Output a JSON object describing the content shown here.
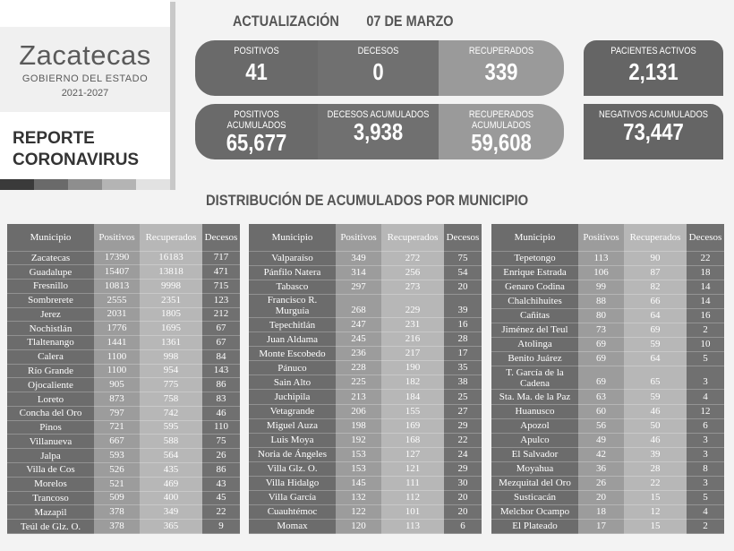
{
  "header": {
    "brand": "Zacatecas",
    "government": "GOBIERNO DEL ESTADO",
    "period": "2021-2027",
    "report_line1": "REPORTE",
    "report_line2": "CORONAVIRUS",
    "update_label": "ACTUALIZACIÓN",
    "update_date": "07 DE MARZO"
  },
  "strip_colors": [
    "#3a3a3a",
    "#6a6a6a",
    "#8e8e8e",
    "#b4b4b4",
    "#e2e2e2"
  ],
  "daily": [
    {
      "label": "POSITIVOS",
      "value": "41",
      "color": "#6a6a6a"
    },
    {
      "label": "DECESOS",
      "value": "0",
      "color": "#707070"
    },
    {
      "label": "RECUPERADOS",
      "value": "339",
      "color": "#9a9a9a"
    }
  ],
  "active": {
    "label": "PACIENTES ACTIVOS",
    "value": "2,131"
  },
  "cumulative": [
    {
      "label": "POSITIVOS ACUMULADOS",
      "value": "65,677",
      "color": "#6a6a6a"
    },
    {
      "label": "DECESOS ACUMULADOS",
      "value": "3,938",
      "color": "#707070"
    },
    {
      "label": "RECUPERADOS ACUMULADOS",
      "value": "59,608",
      "color": "#9a9a9a"
    }
  ],
  "negatives": {
    "label": "NEGATIVOS ACUMULADOS",
    "value": "73,447"
  },
  "distribution_title": "DISTRIBUCIÓN DE ACUMULADOS POR MUNICIPIO",
  "columns": [
    "Municipio",
    "Positivos",
    "Recuperados",
    "Decesos"
  ],
  "tables": [
    [
      [
        "Zacatecas",
        "17390",
        "16183",
        "717"
      ],
      [
        "Guadalupe",
        "15407",
        "13818",
        "471"
      ],
      [
        "Fresnillo",
        "10813",
        "9998",
        "715"
      ],
      [
        "Sombrerete",
        "2555",
        "2351",
        "123"
      ],
      [
        "Jerez",
        "2031",
        "1805",
        "212"
      ],
      [
        "Nochistlán",
        "1776",
        "1695",
        "67"
      ],
      [
        "Tlaltenango",
        "1441",
        "1361",
        "67"
      ],
      [
        "Calera",
        "1100",
        "998",
        "84"
      ],
      [
        "Río Grande",
        "1100",
        "954",
        "143"
      ],
      [
        "Ojocaliente",
        "905",
        "775",
        "86"
      ],
      [
        "Loreto",
        "873",
        "758",
        "83"
      ],
      [
        "Concha del Oro",
        "797",
        "742",
        "46"
      ],
      [
        "Pinos",
        "721",
        "595",
        "110"
      ],
      [
        "Villanueva",
        "667",
        "588",
        "75"
      ],
      [
        "Jalpa",
        "593",
        "564",
        "26"
      ],
      [
        "Villa de Cos",
        "526",
        "435",
        "86"
      ],
      [
        "Morelos",
        "521",
        "469",
        "43"
      ],
      [
        "Trancoso",
        "509",
        "400",
        "45"
      ],
      [
        "Mazapil",
        "378",
        "349",
        "22"
      ],
      [
        "Teúl de Glz. O.",
        "378",
        "365",
        "9"
      ]
    ],
    [
      [
        "Valparaíso",
        "349",
        "272",
        "75"
      ],
      [
        "Pánfilo Natera",
        "314",
        "256",
        "54"
      ],
      [
        "Tabasco",
        "297",
        "273",
        "20"
      ],
      [
        "Francisco R. Murguía",
        "268",
        "229",
        "39"
      ],
      [
        "Tepechitlán",
        "247",
        "231",
        "16"
      ],
      [
        "Juan Aldama",
        "245",
        "216",
        "28"
      ],
      [
        "Monte Escobedo",
        "236",
        "217",
        "17"
      ],
      [
        "Pánuco",
        "228",
        "190",
        "35"
      ],
      [
        "Sain Alto",
        "225",
        "182",
        "38"
      ],
      [
        "Juchipila",
        "213",
        "184",
        "25"
      ],
      [
        "Vetagrande",
        "206",
        "155",
        "27"
      ],
      [
        "Miguel Auza",
        "198",
        "169",
        "29"
      ],
      [
        "Luis Moya",
        "192",
        "168",
        "22"
      ],
      [
        "Noria de Ángeles",
        "153",
        "127",
        "24"
      ],
      [
        "Villa Glz. O.",
        "153",
        "121",
        "29"
      ],
      [
        "Villa Hidalgo",
        "145",
        "111",
        "30"
      ],
      [
        "Villa García",
        "132",
        "112",
        "20"
      ],
      [
        "Cuauhtémoc",
        "122",
        "101",
        "20"
      ],
      [
        "Momax",
        "120",
        "113",
        "6"
      ]
    ],
    [
      [
        "Tepetongo",
        "113",
        "90",
        "22"
      ],
      [
        "Enrique Estrada",
        "106",
        "87",
        "18"
      ],
      [
        "Genaro Codina",
        "99",
        "82",
        "14"
      ],
      [
        "Chalchihuites",
        "88",
        "66",
        "14"
      ],
      [
        "Cañitas",
        "80",
        "64",
        "16"
      ],
      [
        "Jiménez del Teul",
        "73",
        "69",
        "2"
      ],
      [
        "Atolinga",
        "69",
        "59",
        "10"
      ],
      [
        "Benito Juárez",
        "69",
        "64",
        "5"
      ],
      [
        "T. García de la Cadena",
        "69",
        "65",
        "3"
      ],
      [
        "Sta. Ma. de la Paz",
        "63",
        "59",
        "4"
      ],
      [
        "Huanusco",
        "60",
        "46",
        "12"
      ],
      [
        "Apozol",
        "56",
        "50",
        "6"
      ],
      [
        "Apulco",
        "49",
        "46",
        "3"
      ],
      [
        "El Salvador",
        "42",
        "39",
        "3"
      ],
      [
        "Moyahua",
        "36",
        "28",
        "8"
      ],
      [
        "Mezquital del Oro",
        "26",
        "22",
        "3"
      ],
      [
        "Susticacán",
        "20",
        "15",
        "5"
      ],
      [
        "Melchor Ocampo",
        "18",
        "12",
        "4"
      ],
      [
        "El Plateado",
        "17",
        "15",
        "2"
      ]
    ]
  ]
}
